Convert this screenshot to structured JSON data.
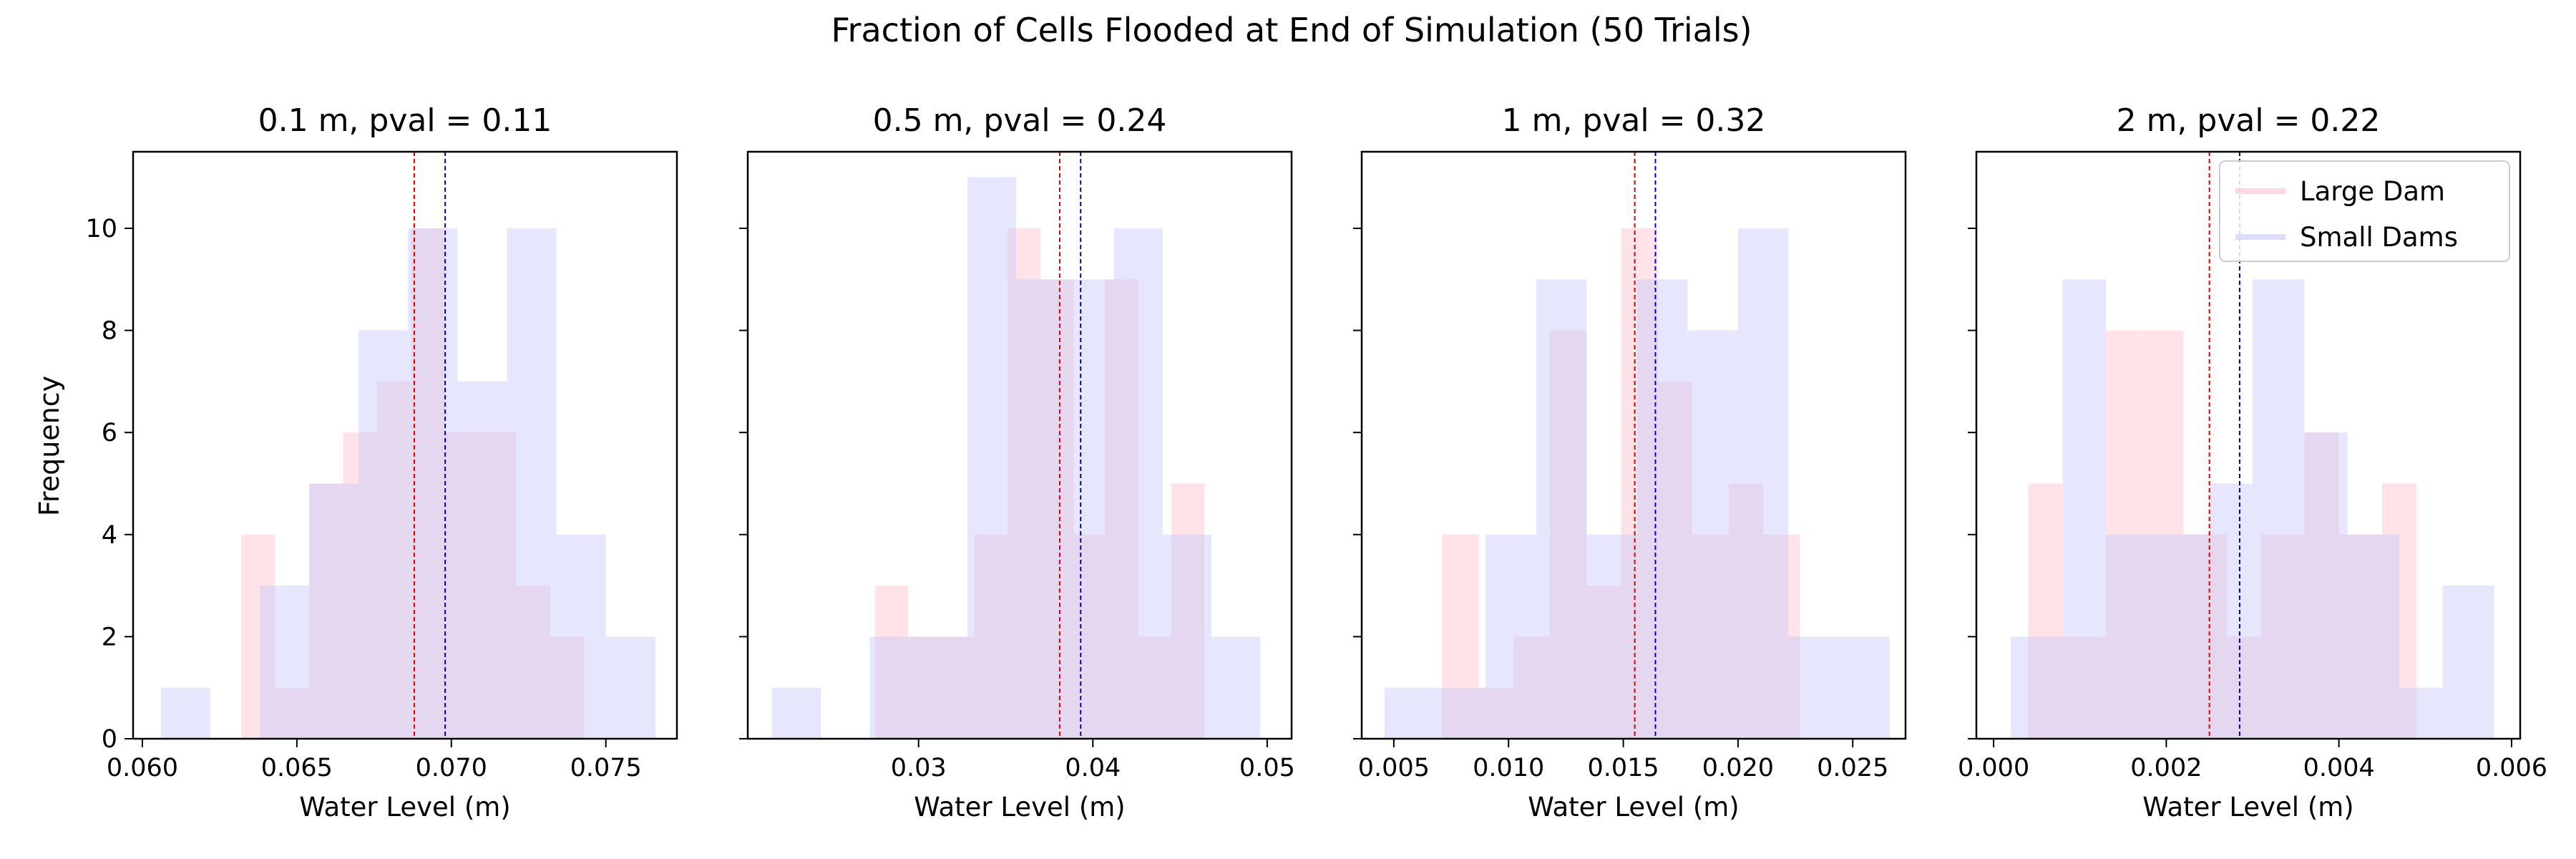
{
  "figure": {
    "suptitle": "Fraction of Cells Flooded at End of Simulation (50 Trials)",
    "ylabel": "Frequency",
    "colors": {
      "large_fill": "#ffc0cb",
      "small_fill": "#c8c8fa",
      "large_line": "#dd0000",
      "small_line": "#0000cc"
    },
    "legend": {
      "placement": "upper right of last panel",
      "entries": [
        "Large Dam",
        "Small Dams"
      ]
    }
  },
  "chart_data": [
    {
      "type": "histogram",
      "title": "0.1 m, pval = 0.11",
      "xlabel": "Water Level (m)",
      "xlim": [
        0.0597,
        0.0773
      ],
      "ylim": [
        0,
        11.5
      ],
      "xticks": [
        0.06,
        0.065,
        0.07,
        0.075
      ],
      "xtick_labels": [
        "0.060",
        "0.065",
        "0.070",
        "0.075"
      ],
      "yticks": [
        0,
        2,
        4,
        6,
        8,
        10
      ],
      "ytick_labels": [
        "0",
        "2",
        "4",
        "6",
        "8",
        "10"
      ],
      "series": [
        {
          "name": "Large Dam",
          "bin_edges": [
            0.0632,
            0.0643,
            0.0654,
            0.0665,
            0.0676,
            0.0687,
            0.0698,
            0.071,
            0.0721,
            0.0732,
            0.0743
          ],
          "counts": [
            4,
            1,
            5,
            6,
            7,
            10,
            6,
            6,
            3,
            2
          ],
          "mean": 0.0688
        },
        {
          "name": "Small Dams",
          "bin_edges": [
            0.0606,
            0.0622,
            0.0638,
            0.0654,
            0.067,
            0.0686,
            0.0702,
            0.0718,
            0.0734,
            0.075,
            0.0766
          ],
          "counts": [
            1,
            0,
            3,
            5,
            8,
            10,
            7,
            10,
            4,
            2
          ],
          "mean": 0.0698
        }
      ]
    },
    {
      "type": "histogram",
      "title": "0.5 m, pval = 0.24",
      "xlabel": "Water Level (m)",
      "xlim": [
        0.0202,
        0.0514
      ],
      "ylim": [
        0,
        11.5
      ],
      "xticks": [
        0.03,
        0.04,
        0.05
      ],
      "xtick_labels": [
        "0.03",
        "0.04",
        "0.05"
      ],
      "yticks": [
        0,
        2,
        4,
        6,
        8,
        10
      ],
      "ytick_labels": [
        "",
        "",
        "",
        "",
        "",
        ""
      ],
      "series": [
        {
          "name": "Large Dam",
          "bin_edges": [
            0.0275,
            0.0294,
            0.0313,
            0.0332,
            0.0351,
            0.037,
            0.0389,
            0.0407,
            0.0426,
            0.0445,
            0.0464
          ],
          "counts": [
            3,
            2,
            2,
            4,
            10,
            9,
            4,
            9,
            2,
            5
          ],
          "mean": 0.0381
        },
        {
          "name": "Small Dams",
          "bin_edges": [
            0.0216,
            0.0244,
            0.0272,
            0.03,
            0.0328,
            0.0356,
            0.0384,
            0.0412,
            0.044,
            0.0468,
            0.0496
          ],
          "counts": [
            1,
            0,
            2,
            2,
            11,
            9,
            9,
            10,
            4,
            2
          ],
          "mean": 0.0393
        }
      ]
    },
    {
      "type": "histogram",
      "title": "1 m, pval = 0.32",
      "xlabel": "Water Level (m)",
      "xlim": [
        0.0036,
        0.0273
      ],
      "ylim": [
        0,
        11.5
      ],
      "xticks": [
        0.005,
        0.01,
        0.015,
        0.02,
        0.025
      ],
      "xtick_labels": [
        "0.005",
        "0.010",
        "0.015",
        "0.020",
        "0.025"
      ],
      "yticks": [
        0,
        2,
        4,
        6,
        8,
        10
      ],
      "ytick_labels": [
        "",
        "",
        "",
        "",
        "",
        ""
      ],
      "series": [
        {
          "name": "Large Dam",
          "bin_edges": [
            0.0071,
            0.0087,
            0.0102,
            0.0118,
            0.0134,
            0.0149,
            0.0165,
            0.018,
            0.0196,
            0.0211,
            0.0227
          ],
          "counts": [
            4,
            1,
            2,
            8,
            3,
            10,
            7,
            4,
            5,
            4
          ],
          "mean": 0.0155
        },
        {
          "name": "Small Dams",
          "bin_edges": [
            0.0046,
            0.0068,
            0.009,
            0.0112,
            0.0134,
            0.0156,
            0.0178,
            0.02,
            0.0222,
            0.0244,
            0.0266
          ],
          "counts": [
            1,
            1,
            4,
            9,
            4,
            9,
            8,
            10,
            2,
            2
          ],
          "mean": 0.0164
        }
      ]
    },
    {
      "type": "histogram",
      "title": "2 m, pval = 0.22",
      "xlabel": "Water Level (m)",
      "xlim": [
        -0.0002,
        0.0061
      ],
      "ylim": [
        0,
        11.5
      ],
      "xticks": [
        0.0,
        0.002,
        0.004,
        0.006
      ],
      "xtick_labels": [
        "0.000",
        "0.002",
        "0.004",
        "0.006"
      ],
      "yticks": [
        0,
        2,
        4,
        6,
        8,
        10
      ],
      "ytick_labels": [
        "",
        "",
        "",
        "",
        "",
        ""
      ],
      "series": [
        {
          "name": "Large Dam",
          "bin_edges": [
            0.0004,
            0.0008,
            0.0013,
            0.0017,
            0.0022,
            0.0027,
            0.0031,
            0.0036,
            0.004,
            0.0045,
            0.0049
          ],
          "counts": [
            5,
            2,
            8,
            8,
            4,
            2,
            4,
            6,
            4,
            5
          ],
          "mean": 0.0025
        },
        {
          "name": "Small Dams",
          "bin_edges": [
            0.0002,
            0.0008,
            0.0013,
            0.0019,
            0.0025,
            0.003,
            0.0036,
            0.0041,
            0.0047,
            0.0052,
            0.0058
          ],
          "counts": [
            2,
            9,
            4,
            4,
            5,
            9,
            6,
            4,
            1,
            3
          ],
          "mean": 0.00285
        }
      ]
    }
  ]
}
